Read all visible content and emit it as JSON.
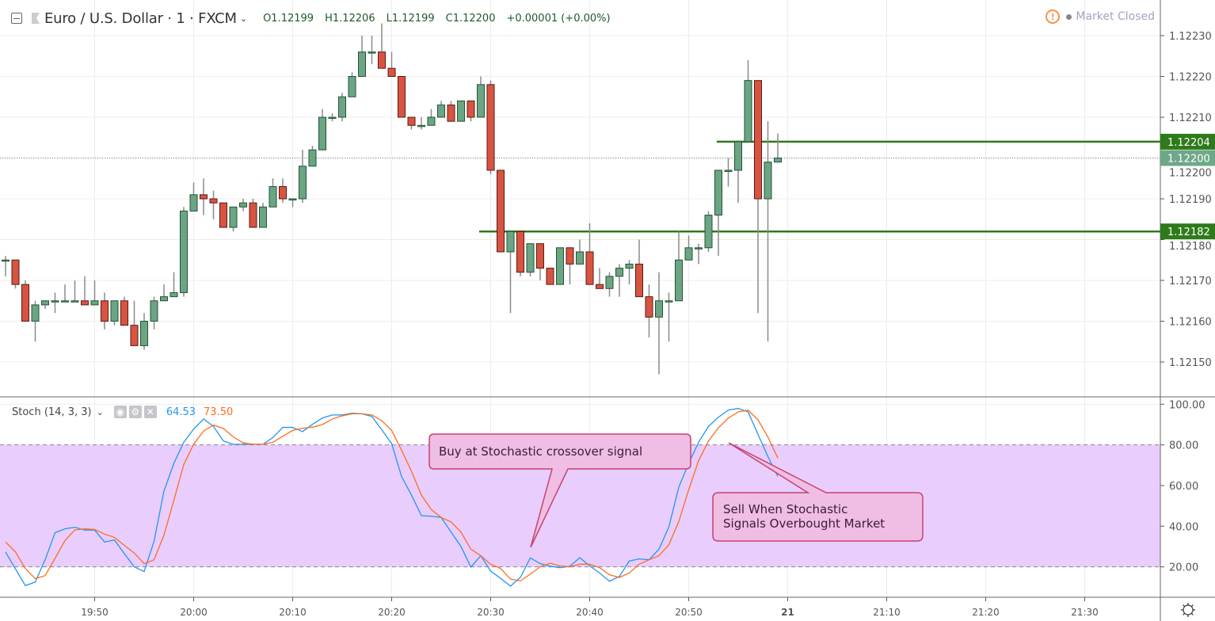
{
  "header": {
    "title": "Euro / U.S. Dollar · 1 · FXCM",
    "open": "O1.12199",
    "high": "H1.12206",
    "low": "L1.12199",
    "close": "C1.12200",
    "change": "+0.00001 (+0.00%)",
    "market_status": "Market Closed"
  },
  "indicator": {
    "label": "Stoch (14, 3, 3)",
    "k_value": "64.53",
    "d_value": "73.50"
  },
  "annotations": {
    "buy": "Buy at Stochastic crossover signal",
    "sell_line1": "Sell When Stochastic",
    "sell_line2": "Signals Overbought Market"
  },
  "colors": {
    "up": "#6ba583",
    "down": "#d75442",
    "k_line": "#2196f3",
    "d_line": "#ff6d1f",
    "level_line": "#2f7a1b",
    "band": "#e9cdfd",
    "callout": "#efb9e3"
  },
  "chart_data": [
    {
      "type": "candlestick",
      "title": "Euro / U.S. Dollar · 1 · FXCM",
      "price_ticks": [
        "1.12150",
        "1.12160",
        "1.12170",
        "1.12180",
        "1.12190",
        "1.12200",
        "1.12210",
        "1.12220",
        "1.12230"
      ],
      "time_ticks": [
        "19:50",
        "20:00",
        "20:10",
        "20:20",
        "20:30",
        "20:40",
        "20:50",
        "21",
        "21:10",
        "21:20",
        "21:30"
      ],
      "last_price": "1.12200",
      "horizontal_lines": [
        {
          "price": "1.12204",
          "from": "20:53"
        },
        {
          "price": "1.12182",
          "from": "20:29"
        }
      ],
      "candles_columns": [
        "time",
        "open",
        "high",
        "low",
        "close"
      ],
      "candles": [
        [
          "19:41",
          1.12175,
          1.12176,
          1.12171,
          1.12175
        ],
        [
          "19:42",
          1.12175,
          1.12175,
          1.12168,
          1.12169
        ],
        [
          "19:43",
          1.12169,
          1.1217,
          1.1216,
          1.1216
        ],
        [
          "19:44",
          1.1216,
          1.12165,
          1.12155,
          1.12164
        ],
        [
          "19:45",
          1.12164,
          1.12165,
          1.12163,
          1.12165
        ],
        [
          "19:46",
          1.12165,
          1.12167,
          1.12162,
          1.12165
        ],
        [
          "19:47",
          1.12165,
          1.12169,
          1.12165,
          1.12165
        ],
        [
          "19:48",
          1.12165,
          1.1217,
          1.12165,
          1.12165
        ],
        [
          "19:49",
          1.12165,
          1.12171,
          1.12164,
          1.12164
        ],
        [
          "19:50",
          1.12164,
          1.1217,
          1.12164,
          1.12165
        ],
        [
          "19:51",
          1.12165,
          1.12167,
          1.12158,
          1.1216
        ],
        [
          "19:52",
          1.1216,
          1.12165,
          1.12159,
          1.12165
        ],
        [
          "19:53",
          1.12165,
          1.12166,
          1.12159,
          1.12159
        ],
        [
          "19:54",
          1.12159,
          1.12165,
          1.12154,
          1.12154
        ],
        [
          "19:55",
          1.12154,
          1.12162,
          1.12153,
          1.1216
        ],
        [
          "19:56",
          1.1216,
          1.12166,
          1.12158,
          1.12165
        ],
        [
          "19:57",
          1.12165,
          1.12169,
          1.12165,
          1.12166
        ],
        [
          "19:58",
          1.12166,
          1.12172,
          1.12166,
          1.12167
        ],
        [
          "19:59",
          1.12167,
          1.12188,
          1.12166,
          1.12187
        ],
        [
          "20:00",
          1.12187,
          1.12194,
          1.12187,
          1.12191
        ],
        [
          "20:01",
          1.12191,
          1.12195,
          1.12186,
          1.1219
        ],
        [
          "20:02",
          1.1219,
          1.12192,
          1.12185,
          1.12189
        ],
        [
          "20:03",
          1.12189,
          1.12189,
          1.12183,
          1.12183
        ],
        [
          "20:04",
          1.12183,
          1.12188,
          1.12182,
          1.12188
        ],
        [
          "20:05",
          1.12188,
          1.1219,
          1.12187,
          1.12189
        ],
        [
          "20:06",
          1.12189,
          1.1219,
          1.12183,
          1.12183
        ],
        [
          "20:07",
          1.12183,
          1.12189,
          1.12183,
          1.12188
        ],
        [
          "20:08",
          1.12188,
          1.12195,
          1.12188,
          1.12193
        ],
        [
          "20:09",
          1.12193,
          1.12195,
          1.12189,
          1.1219
        ],
        [
          "20:10",
          1.1219,
          1.1219,
          1.12188,
          1.1219
        ],
        [
          "20:11",
          1.1219,
          1.12202,
          1.12189,
          1.12198
        ],
        [
          "20:12",
          1.12198,
          1.12203,
          1.12198,
          1.12202
        ],
        [
          "20:13",
          1.12202,
          1.12212,
          1.12202,
          1.1221
        ],
        [
          "20:14",
          1.1221,
          1.12211,
          1.12209,
          1.1221
        ],
        [
          "20:15",
          1.1221,
          1.12216,
          1.12209,
          1.12215
        ],
        [
          "20:16",
          1.12215,
          1.12221,
          1.12215,
          1.1222
        ],
        [
          "20:17",
          1.1222,
          1.1223,
          1.1222,
          1.12226
        ],
        [
          "20:18",
          1.12226,
          1.1223,
          1.12223,
          1.12226
        ],
        [
          "20:19",
          1.12226,
          1.12233,
          1.12222,
          1.12222
        ],
        [
          "20:20",
          1.12222,
          1.12226,
          1.1222,
          1.1222
        ],
        [
          "20:21",
          1.1222,
          1.1222,
          1.1221,
          1.1221
        ],
        [
          "20:22",
          1.1221,
          1.1221,
          1.12207,
          1.12208
        ],
        [
          "20:23",
          1.12208,
          1.1221,
          1.12207,
          1.12208
        ],
        [
          "20:24",
          1.12208,
          1.12212,
          1.12208,
          1.1221
        ],
        [
          "20:25",
          1.1221,
          1.12214,
          1.1221,
          1.12213
        ],
        [
          "20:26",
          1.12213,
          1.12214,
          1.12209,
          1.12209
        ],
        [
          "20:27",
          1.12209,
          1.12214,
          1.12209,
          1.12214
        ],
        [
          "20:28",
          1.12214,
          1.12214,
          1.12209,
          1.1221
        ],
        [
          "20:29",
          1.1221,
          1.1222,
          1.1221,
          1.12218
        ],
        [
          "20:30",
          1.12218,
          1.12219,
          1.12196,
          1.12197
        ],
        [
          "20:31",
          1.12197,
          1.12197,
          1.12177,
          1.12177
        ],
        [
          "20:32",
          1.12177,
          1.12182,
          1.12162,
          1.12182
        ],
        [
          "20:33",
          1.12182,
          1.12182,
          1.12171,
          1.12172
        ],
        [
          "20:34",
          1.12172,
          1.12179,
          1.12171,
          1.12179
        ],
        [
          "20:35",
          1.12179,
          1.12179,
          1.1217,
          1.12173
        ],
        [
          "20:36",
          1.12173,
          1.12173,
          1.12169,
          1.12169
        ],
        [
          "20:37",
          1.12169,
          1.12178,
          1.12169,
          1.12178
        ],
        [
          "20:38",
          1.12178,
          1.12178,
          1.12169,
          1.12174
        ],
        [
          "20:39",
          1.12174,
          1.1218,
          1.12174,
          1.12177
        ],
        [
          "20:40",
          1.12177,
          1.12184,
          1.12169,
          1.12169
        ],
        [
          "20:41",
          1.12169,
          1.12173,
          1.12168,
          1.12168
        ],
        [
          "20:42",
          1.12168,
          1.12172,
          1.12166,
          1.12171
        ],
        [
          "20:43",
          1.12171,
          1.12174,
          1.12166,
          1.12173
        ],
        [
          "20:44",
          1.12173,
          1.12175,
          1.12169,
          1.12174
        ],
        [
          "20:45",
          1.12174,
          1.1218,
          1.12166,
          1.12166
        ],
        [
          "20:46",
          1.12166,
          1.12169,
          1.12156,
          1.12161
        ],
        [
          "20:47",
          1.12161,
          1.12172,
          1.12147,
          1.12165
        ],
        [
          "20:48",
          1.12165,
          1.12167,
          1.12155,
          1.12165
        ],
        [
          "20:49",
          1.12165,
          1.12182,
          1.12165,
          1.12175
        ],
        [
          "20:50",
          1.12175,
          1.12181,
          1.12175,
          1.12178
        ],
        [
          "20:51",
          1.12178,
          1.12179,
          1.12174,
          1.12178
        ],
        [
          "20:52",
          1.12178,
          1.12187,
          1.12177,
          1.12186
        ],
        [
          "20:53",
          1.12186,
          1.12197,
          1.12176,
          1.12197
        ],
        [
          "20:54",
          1.12197,
          1.122,
          1.12193,
          1.12197
        ],
        [
          "20:55",
          1.12197,
          1.12204,
          1.12189,
          1.12204
        ],
        [
          "20:56",
          1.12204,
          1.12224,
          1.12204,
          1.12219
        ],
        [
          "20:57",
          1.12219,
          1.12219,
          1.12162,
          1.1219
        ],
        [
          "20:58",
          1.1219,
          1.12209,
          1.12155,
          1.12199
        ],
        [
          "20:59",
          1.12199,
          1.12206,
          1.12199,
          1.122
        ]
      ]
    },
    {
      "type": "line",
      "title": "Stoch (14, 3, 3)",
      "ylim": [
        0,
        100
      ],
      "y_ticks": [
        "20.00",
        "40.00",
        "60.00",
        "80.00",
        "100.00"
      ],
      "band": [
        20,
        80
      ],
      "series": [
        {
          "name": "%K",
          "values": [
            27.3,
            19,
            10.8,
            12.5,
            23.5,
            36.8,
            38.7,
            39.5,
            38.1,
            38.1,
            32.2,
            33.2,
            26.5,
            20,
            17.7,
            32.6,
            57.3,
            70.9,
            81.3,
            87.8,
            92.7,
            89.1,
            81.9,
            80.3,
            80.3,
            80.3,
            80.3,
            83.6,
            88.6,
            88.6,
            86.5,
            90.1,
            93.2,
            94.7,
            94.7,
            95.6,
            95.3,
            94,
            87.4,
            80.6,
            64.4,
            55.3,
            45.2,
            44.9,
            44.3,
            37.1,
            30,
            19.9,
            25.5,
            17.9,
            14.4,
            10.5,
            14.8,
            24.4,
            21.6,
            20.3,
            19.6,
            20.3,
            24.5,
            20.5,
            17,
            12.9,
            15.3,
            22.9,
            23.9,
            23.5,
            28.7,
            39.7,
            59.2,
            70.9,
            81.3,
            89.1,
            93.6,
            97.1,
            97.9,
            96.2,
            85.2,
            74.2,
            64.53
          ]
        },
        {
          "name": "%D",
          "values": [
            32.2,
            27.4,
            19.2,
            14.2,
            15.7,
            24.2,
            32.9,
            38.2,
            38.7,
            38.4,
            36.1,
            34.5,
            30.6,
            26.8,
            21.6,
            23.5,
            35.6,
            52.7,
            70.3,
            80.3,
            86.8,
            89.7,
            88.1,
            83.9,
            81,
            80.3,
            80.3,
            81.3,
            84.2,
            87.1,
            88.2,
            88.7,
            90,
            92.7,
            94.3,
            95.3,
            95.3,
            94.7,
            91.9,
            87.1,
            77.4,
            67,
            55.3,
            48.2,
            44.3,
            42.1,
            37.1,
            28.7,
            25.5,
            21.3,
            19.2,
            14,
            13.1,
            16.4,
            20,
            21.8,
            20.5,
            20,
            21.3,
            21.3,
            19.6,
            16.1,
            14.8,
            17,
            21.3,
            23.5,
            25.5,
            30.9,
            42.3,
            57.9,
            72.2,
            81.9,
            88.4,
            93.2,
            96.2,
            97.1,
            92.3,
            83.9,
            73.5
          ]
        }
      ]
    }
  ]
}
